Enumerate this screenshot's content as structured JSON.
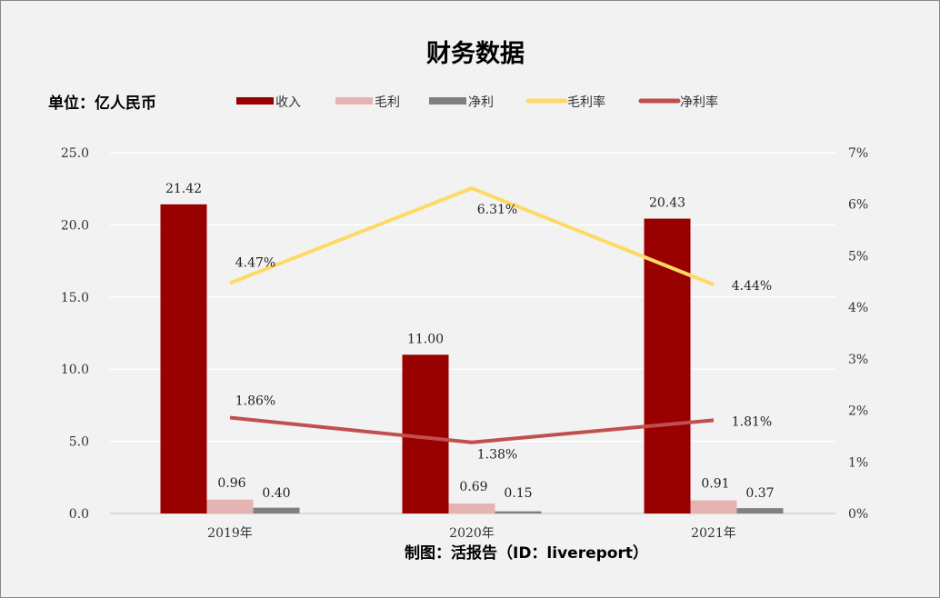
{
  "chart_data": {
    "type": "bar",
    "title": "财务数据",
    "unit_label": "单位：亿人民币",
    "source": "制图：活报告（ID：livereport）",
    "categories": [
      "2019年",
      "2020年",
      "2021年"
    ],
    "series": [
      {
        "name": "收入",
        "type": "bar",
        "axis": "left",
        "color": "#990000",
        "values": [
          21.42,
          11.0,
          20.43
        ],
        "labels": [
          "21.42",
          "11.00",
          "20.43"
        ]
      },
      {
        "name": "毛利",
        "type": "bar",
        "axis": "left",
        "color": "#e6b3b3",
        "values": [
          0.96,
          0.69,
          0.91
        ],
        "labels": [
          "0.96",
          "0.69",
          "0.91"
        ]
      },
      {
        "name": "净利",
        "type": "bar",
        "axis": "left",
        "color": "#808080",
        "values": [
          0.4,
          0.15,
          0.37
        ],
        "labels": [
          "0.40",
          "0.15",
          "0.37"
        ]
      },
      {
        "name": "毛利率",
        "type": "line",
        "axis": "right",
        "color": "#ffd966",
        "values": [
          4.47,
          6.31,
          4.44
        ],
        "labels": [
          "4.47%",
          "6.31%",
          "4.44%"
        ]
      },
      {
        "name": "净利率",
        "type": "line",
        "axis": "right",
        "color": "#c0504d",
        "values": [
          1.86,
          1.38,
          1.81
        ],
        "labels": [
          "1.86%",
          "1.38%",
          "1.81%"
        ]
      }
    ],
    "ylim": [
      0,
      25
    ],
    "yticks": [
      "0.0",
      "5.0",
      "10.0",
      "15.0",
      "20.0",
      "25.0"
    ],
    "y2lim": [
      0,
      7
    ],
    "y2ticks": [
      "0%",
      "1%",
      "2%",
      "3%",
      "4%",
      "5%",
      "6%",
      "7%"
    ],
    "grid": true,
    "legend": "top"
  }
}
